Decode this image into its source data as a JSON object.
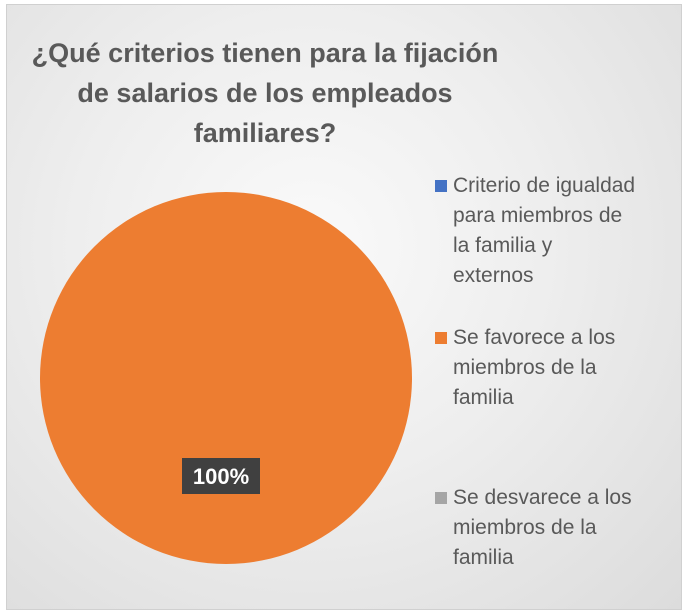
{
  "chart_data": {
    "type": "pie",
    "title": "¿Qué criterios tienen para la fijación de salarios de los empleados familiares?",
    "categories": [
      "Criterio de igualdad para miembros de la familia y externos",
      "Se favorece a los miembros de la familia",
      "Se desvarece a los miembros de la familia"
    ],
    "values": [
      0,
      100,
      0
    ],
    "data_labels": [
      "",
      "100%",
      ""
    ],
    "colors": [
      "#4472c4",
      "#ed7d31",
      "#a5a5a5"
    ],
    "legend_position": "right",
    "legend_lines": [
      "Criterio de igualdad\npara miembros de\nla familia y\nexternos",
      "Se favorece a los\nmiembros de la\nfamilia",
      "Se desvarece a los\nmiembros de la\nfamilia"
    ]
  }
}
